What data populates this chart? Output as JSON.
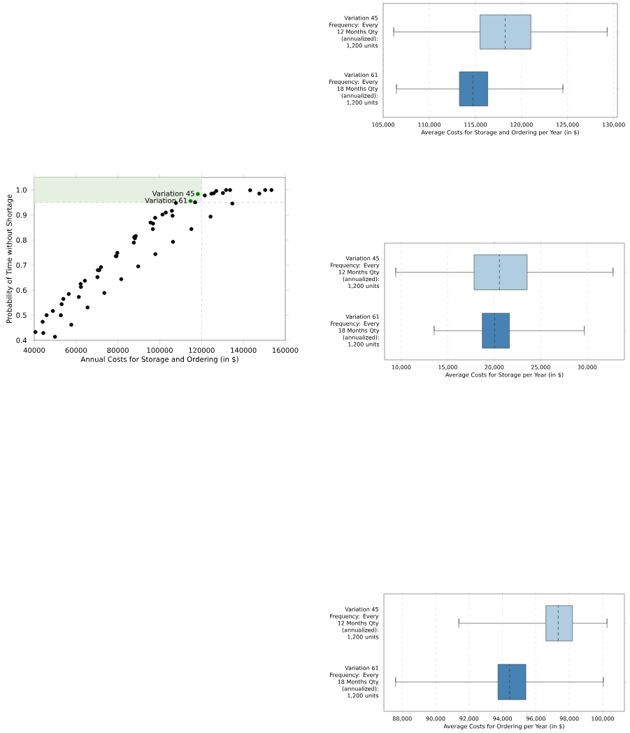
{
  "chart_data": [
    {
      "type": "scatter",
      "xlabel": "Annual Costs for Storage and Ordering (in $)",
      "ylabel": "Probability of Time without Shortage",
      "xlim": [
        40000,
        160000
      ],
      "ylim": [
        0.4,
        1.05
      ],
      "xticks": [
        40000,
        60000,
        80000,
        100000,
        120000,
        140000,
        160000
      ],
      "yticks": [
        0.4,
        0.5,
        0.6,
        0.7,
        0.8,
        0.9,
        {
          "value": 1.0,
          "label": "1.0"
        }
      ],
      "bands": [
        {
          "axis": "y",
          "from": 0.95,
          "to": 1.05,
          "color": "#e5f0e2"
        }
      ],
      "ref_lines": [
        {
          "axis": "x",
          "value": 120000,
          "color": "#cccccc",
          "line_style": "dashed"
        },
        {
          "axis": "y",
          "value": 0.95,
          "color": "#cccccc",
          "line_style": "dashed"
        }
      ],
      "series": [
        {
          "color": "#000000",
          "x": [
            40557,
            44000,
            44300,
            45900,
            48900,
            49900,
            52700,
            53100,
            53900,
            56500,
            57700,
            61300,
            62200,
            62300,
            64200,
            65500,
            70200,
            70400,
            71100,
            71900,
            73500,
            79000,
            79300,
            79700,
            81600,
            87600,
            87800,
            88100,
            88500,
            89700,
            95600,
            96700,
            96800,
            97800,
            97900,
            101300,
            102900,
            105800,
            106100,
            106300,
            107700,
            115100,
            116900,
            121500,
            124300,
            124700,
            125800,
            127000,
            130200,
            131700,
            133600,
            134700,
            143200,
            147600,
            150400,
            153400
          ],
          "values": [
            0.433,
            0.474,
            0.429,
            0.5,
            0.517,
            0.414,
            0.5,
            0.544,
            0.565,
            0.585,
            0.462,
            0.573,
            0.625,
            0.613,
            0.638,
            0.531,
            0.652,
            0.68,
            0.68,
            0.692,
            0.589,
            0.736,
            0.736,
            0.749,
            0.644,
            0.79,
            0.812,
            0.807,
            0.816,
            0.695,
            0.87,
            0.844,
            0.866,
            0.889,
            0.744,
            0.902,
            0.91,
            0.917,
            0.897,
            0.793,
            0.948,
            0.844,
            0.951,
            0.978,
            0.894,
            0.985,
            0.987,
            0.996,
            0.988,
            1.0,
            1.0,
            0.946,
            0.999,
            0.986,
            1.0,
            1.0
          ]
        },
        {
          "color": "#008000",
          "x": [
            118200,
            114700
          ],
          "values": [
            0.984,
            0.956
          ]
        }
      ],
      "annotations": [
        {
          "text": "Variation 45",
          "x": 118200,
          "y": 0.984
        },
        {
          "text": "Variation 61",
          "x": 114700,
          "y": 0.956
        }
      ]
    },
    {
      "type": "box",
      "orientation": "horizontal",
      "xlabel": "Average Costs for Storage and Ordering per Year (in $)",
      "grid": "x",
      "categories": [
        "Variation 45 Frequency: Every 12 Months Qty (annualized): 1,200 units",
        "Variation 61 Frequency: Every 18 Months Qty (annualized): 1,200 units"
      ],
      "colors": [
        "#b0cde1",
        "#4682b4"
      ],
      "xlim": [
        105000,
        130400
      ],
      "xticks": [
        {
          "value": 105000,
          "label": "105,000"
        },
        {
          "value": 110000,
          "label": "110,000"
        },
        {
          "value": 115000,
          "label": "115,000"
        },
        {
          "value": 120000,
          "label": "120,000"
        },
        {
          "value": 125000,
          "label": "125,000"
        },
        {
          "value": 130000,
          "label": "130,000"
        }
      ],
      "boxes": [
        {
          "low": 106140,
          "q1": 115500,
          "median": 118230,
          "q3": 121020,
          "high": 129290
        },
        {
          "low": 106440,
          "q1": 113270,
          "median": 114740,
          "q3": 116340,
          "high": 124490
        }
      ]
    },
    {
      "type": "box",
      "orientation": "horizontal",
      "xlabel": "Average Costs for Storage per Year (in $)",
      "grid": "x",
      "categories": [
        "Variation 45 Frequency: Every 12 Months Qty (annualized): 1,200 units",
        "Variation 61 Frequency: Every 18 Months Qty (annualized): 1,200 units"
      ],
      "colors": [
        "#b0cde1",
        "#4682b4"
      ],
      "xlim": [
        8200,
        34000
      ],
      "xticks": [
        {
          "value": 10000,
          "label": "10,000"
        },
        {
          "value": 15000,
          "label": "15,000"
        },
        {
          "value": 20000,
          "label": "20,000"
        },
        {
          "value": 25000,
          "label": "25,000"
        },
        {
          "value": 30000,
          "label": "30,000"
        }
      ],
      "boxes": [
        {
          "low": 9400,
          "q1": 17830,
          "median": 20560,
          "q3": 23540,
          "high": 32780
        },
        {
          "low": 13530,
          "q1": 18710,
          "median": 20040,
          "q3": 21640,
          "high": 29680
        }
      ]
    },
    {
      "type": "box",
      "orientation": "horizontal",
      "xlabel": "Average Costs for Ordering per Year (in $)",
      "grid": "x",
      "categories": [
        "Variation 45 Frequency: Every 12 Months Qty (annualized): 1,200 units",
        "Variation 61 Frequency: Every 18 Months Qty (annualized): 1,200 units"
      ],
      "colors": [
        "#b0cde1",
        "#4682b4"
      ],
      "xlim": [
        86900,
        101300
      ],
      "xticks": [
        {
          "value": 88000,
          "label": "88,000"
        },
        {
          "value": 90000,
          "label": "90,000"
        },
        {
          "value": 92000,
          "label": "92,000"
        },
        {
          "value": 94000,
          "label": "94,000"
        },
        {
          "value": 96000,
          "label": "96,000"
        },
        {
          "value": 98000,
          "label": "98,000"
        },
        {
          "value": 100000,
          "label": "100,000"
        }
      ],
      "boxes": [
        {
          "low": 91390,
          "q1": 96600,
          "median": 97340,
          "q3": 98190,
          "high": 100260
        },
        {
          "low": 87600,
          "q1": 93730,
          "median": 94430,
          "q3": 95400,
          "high": 100040
        }
      ]
    }
  ]
}
